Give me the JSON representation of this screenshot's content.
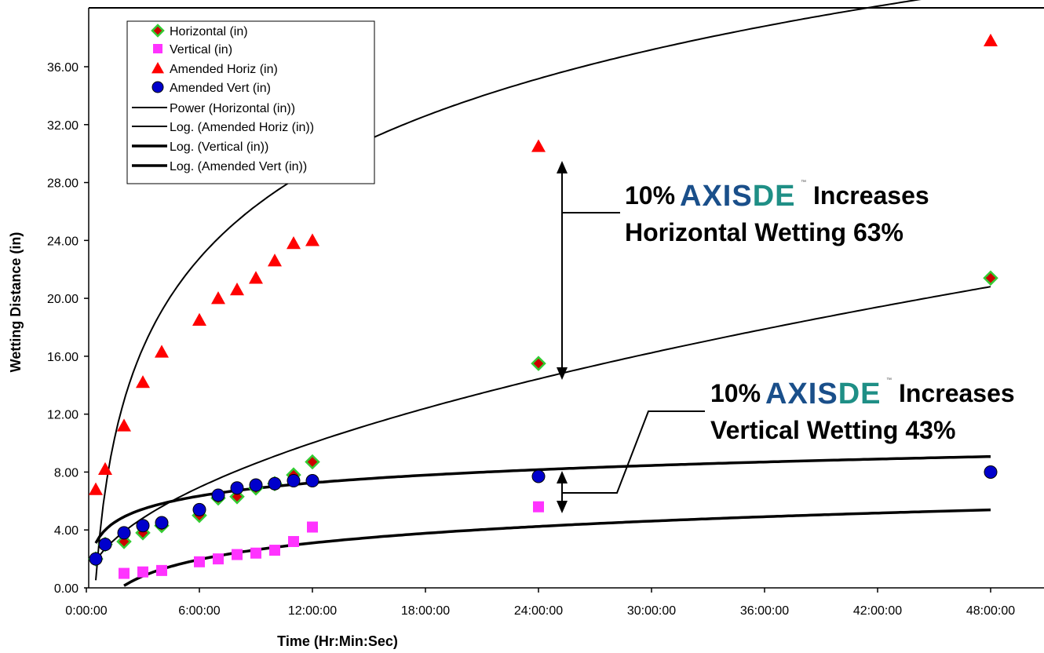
{
  "chart_data": {
    "type": "scatter",
    "title": "",
    "xlabel": "Time (Hr:Min:Sec)",
    "ylabel": "Wetting Distance (in)",
    "xlim": [
      0,
      52
    ],
    "ylim": [
      0,
      40
    ],
    "x_ticks": [
      "0:00:00",
      "6:00:00",
      "12:00:00",
      "18:00:00",
      "24:00:00",
      "30:00:00",
      "36:00:00",
      "42:00:00",
      "48:00:00"
    ],
    "y_ticks": [
      "0.00",
      "4.00",
      "8.00",
      "12.00",
      "16.00",
      "20.00",
      "24.00",
      "28.00",
      "32.00",
      "36.00"
    ],
    "legend_position": "top-left",
    "series": [
      {
        "name": "Horizontal   (in)",
        "marker": "diamond",
        "color": "#33cc33",
        "edge": "#cc0000",
        "x": [
          0.5,
          1,
          2,
          3,
          4,
          6,
          7,
          8,
          9,
          10,
          11,
          12,
          24,
          48
        ],
        "y": [
          2.0,
          3.0,
          3.2,
          3.8,
          4.3,
          5.0,
          6.2,
          6.3,
          6.9,
          7.2,
          7.8,
          8.7,
          15.5,
          21.4
        ]
      },
      {
        "name": "Vertical    (in)",
        "marker": "square",
        "color": "#ff33ff",
        "x": [
          2,
          3,
          4,
          6,
          7,
          8,
          9,
          10,
          11,
          12,
          24
        ],
        "y": [
          1.0,
          1.1,
          1.2,
          1.8,
          2.0,
          2.3,
          2.4,
          2.6,
          3.2,
          4.2,
          5.6
        ]
      },
      {
        "name": "Amended Horiz (in)",
        "marker": "triangle",
        "color": "#ff0000",
        "x": [
          0.5,
          1,
          2,
          3,
          4,
          6,
          7,
          8,
          9,
          10,
          11,
          12,
          24,
          48
        ],
        "y": [
          6.8,
          8.2,
          11.2,
          14.2,
          16.3,
          18.5,
          20.0,
          20.6,
          21.4,
          22.6,
          23.8,
          24.0,
          30.5,
          37.8
        ]
      },
      {
        "name": "Amended Vert   (in)",
        "marker": "circle",
        "color": "#0000cc",
        "x": [
          0.5,
          1,
          2,
          3,
          4,
          6,
          7,
          8,
          9,
          10,
          11,
          12,
          24,
          48
        ],
        "y": [
          2.0,
          3.0,
          3.8,
          4.3,
          4.5,
          5.4,
          6.4,
          6.9,
          7.1,
          7.2,
          7.4,
          7.4,
          7.7,
          8.0
        ]
      }
    ],
    "trendlines": [
      {
        "name": "Power (Horizontal   (in))",
        "kind": "power",
        "a": 2.7,
        "b": 0.5275,
        "x_range": [
          0.5,
          48
        ],
        "width": "thin"
      },
      {
        "name": "Log. (Amended Horiz (in))",
        "kind": "log",
        "a": 8.95,
        "b": 6.73,
        "x_range": [
          0.5,
          48
        ],
        "width": "thin"
      },
      {
        "name": "Log. (Vertical   (in))",
        "kind": "log",
        "a": 1.65,
        "b": -1.0,
        "x_range": [
          2,
          48
        ],
        "width": "thick"
      },
      {
        "name": "Log. (Amended Vert   (in))",
        "kind": "log",
        "a": 1.31,
        "b": 4.0,
        "x_range": [
          0.5,
          48
        ],
        "width": "thick"
      }
    ],
    "annotations": [
      {
        "prefix": "10%",
        "brand_main": "AXIS",
        "brand_accent": "DE",
        "suffix": "Increases",
        "line2": "Horizontal Wetting 63%"
      },
      {
        "prefix": "10%",
        "brand_main": "AXIS",
        "brand_accent": "DE",
        "suffix": "Increases",
        "line2": "Vertical Wetting 43%"
      }
    ]
  }
}
